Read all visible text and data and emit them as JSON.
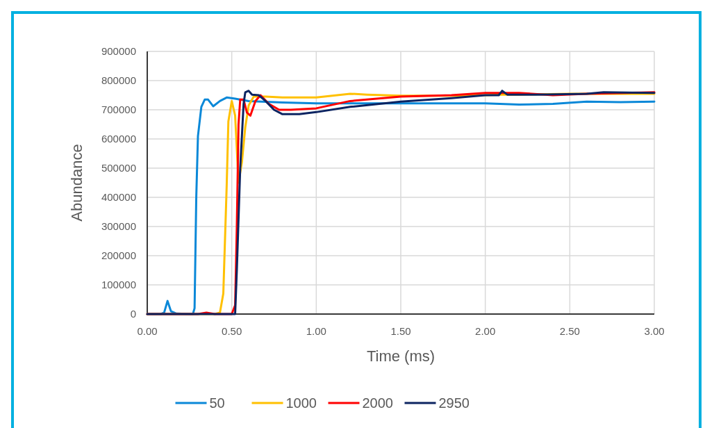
{
  "chart_data": {
    "type": "line",
    "xlabel": "Time (ms)",
    "ylabel": "Abundance",
    "xlim": [
      0,
      3
    ],
    "ylim": [
      0,
      900000
    ],
    "xticks": [
      {
        "value": 0,
        "label": "0.00"
      },
      {
        "value": 0.5,
        "label": "0.50"
      },
      {
        "value": 1,
        "label": "1.00"
      },
      {
        "value": 1.5,
        "label": "1.50"
      },
      {
        "value": 2,
        "label": "2.00"
      },
      {
        "value": 2.5,
        "label": "2.50"
      },
      {
        "value": 3,
        "label": "3.00"
      }
    ],
    "yticks": [
      0,
      100000,
      200000,
      300000,
      400000,
      500000,
      600000,
      700000,
      800000,
      900000
    ],
    "grid": true,
    "legend": "bottom",
    "line_style": "solid",
    "series": [
      {
        "name": "50",
        "color": "#0a88d8",
        "x": [
          0,
          0.08,
          0.1,
          0.12,
          0.14,
          0.17,
          0.27,
          0.28,
          0.29,
          0.3,
          0.32,
          0.34,
          0.36,
          0.39,
          0.43,
          0.47,
          0.52,
          0.6,
          0.8,
          1,
          1.5,
          2,
          2.2,
          2.4,
          2.6,
          2.8,
          3
        ],
        "values": [
          0,
          0,
          5000,
          45000,
          10000,
          2000,
          0,
          20000,
          400000,
          610000,
          710000,
          735000,
          735000,
          712000,
          730000,
          742000,
          738000,
          730000,
          725000,
          722000,
          722000,
          722000,
          718000,
          720000,
          728000,
          726000,
          728000
        ]
      },
      {
        "name": "1000",
        "color": "#ffc000",
        "x": [
          0,
          0.4,
          0.43,
          0.45,
          0.47,
          0.48,
          0.5,
          0.52,
          0.54,
          0.56,
          0.58,
          0.6,
          0.63,
          0.7,
          0.8,
          1,
          1.2,
          1.3,
          1.5,
          1.8,
          2,
          2.1,
          2.2,
          2.5,
          3
        ],
        "values": [
          0,
          0,
          5000,
          70000,
          440000,
          660000,
          730000,
          680000,
          450000,
          520000,
          640000,
          715000,
          745000,
          745000,
          742000,
          742000,
          755000,
          752000,
          748000,
          748000,
          750000,
          752000,
          752000,
          755000,
          755000
        ]
      },
      {
        "name": "2000",
        "color": "#ff0000",
        "x": [
          0,
          0.3,
          0.35,
          0.4,
          0.5,
          0.52,
          0.53,
          0.54,
          0.55,
          0.57,
          0.59,
          0.61,
          0.64,
          0.67,
          0.72,
          0.78,
          0.85,
          1,
          1.2,
          1.5,
          1.8,
          2,
          2.2,
          2.4,
          2.6,
          3
        ],
        "values": [
          0,
          0,
          5000,
          0,
          0,
          30000,
          300000,
          650000,
          735000,
          735000,
          690000,
          680000,
          730000,
          750000,
          720000,
          700000,
          700000,
          705000,
          730000,
          745000,
          750000,
          758000,
          758000,
          750000,
          755000,
          760000
        ]
      },
      {
        "name": "2950",
        "color": "#0c2461",
        "x": [
          0,
          0.52,
          0.53,
          0.55,
          0.57,
          0.58,
          0.6,
          0.62,
          0.66,
          0.7,
          0.75,
          0.8,
          0.9,
          1,
          1.2,
          1.5,
          1.8,
          2,
          2.08,
          2.1,
          2.13,
          2.3,
          2.6,
          2.7,
          3
        ],
        "values": [
          0,
          0,
          150000,
          500000,
          720000,
          760000,
          765000,
          752000,
          750000,
          730000,
          700000,
          685000,
          685000,
          692000,
          710000,
          728000,
          740000,
          750000,
          750000,
          765000,
          752000,
          752000,
          755000,
          760000,
          758000
        ]
      }
    ]
  }
}
